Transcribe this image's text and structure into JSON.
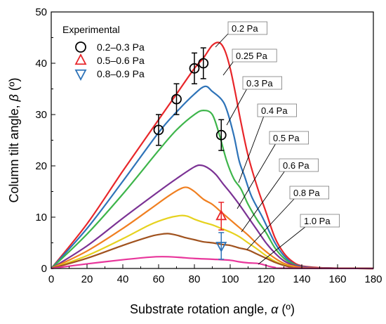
{
  "chart_data": {
    "type": "line",
    "title": "",
    "xlabel_text": "Substrate rotation angle, ",
    "xlabel_symbol": "α",
    "xlabel_unit": " (º)",
    "ylabel_text": "Column tilt angle, ",
    "ylabel_symbol": "β",
    "ylabel_unit": " (º)",
    "xlim": [
      0,
      180
    ],
    "ylim": [
      0,
      50
    ],
    "xticks": [
      0,
      20,
      40,
      60,
      80,
      100,
      120,
      140,
      160,
      180
    ],
    "yticks": [
      0,
      10,
      20,
      30,
      40,
      50
    ],
    "grid": false,
    "legend": {
      "title": "Experimental",
      "placement": "top-left",
      "entries": [
        {
          "label": "0.2–0.3 Pa",
          "marker": "circle",
          "color": "#000000"
        },
        {
          "label": "0.5–0.6 Pa",
          "marker": "triangle-up",
          "color": "#e8262a"
        },
        {
          "label": "0.8–0.9 Pa",
          "marker": "triangle-down",
          "color": "#2e73b8"
        }
      ]
    },
    "series": [
      {
        "name": "0.2 Pa",
        "color": "#e8262a",
        "points": [
          [
            0,
            0
          ],
          [
            20,
            8.7
          ],
          [
            40,
            19
          ],
          [
            60,
            29
          ],
          [
            70,
            34
          ],
          [
            80,
            39
          ],
          [
            85,
            41
          ],
          [
            90,
            43.5
          ],
          [
            94,
            44
          ],
          [
            97,
            42.5
          ],
          [
            100,
            39
          ],
          [
            103,
            34
          ],
          [
            106,
            28.5
          ],
          [
            110,
            22
          ],
          [
            115,
            16
          ],
          [
            120,
            11
          ],
          [
            125,
            6
          ],
          [
            130,
            3
          ],
          [
            135,
            1.3
          ],
          [
            140,
            0.5
          ],
          [
            150,
            0.15
          ],
          [
            160,
            0.05
          ],
          [
            180,
            0
          ]
        ]
      },
      {
        "name": "0.25 Pa",
        "color": "#2e73b8",
        "points": [
          [
            0,
            0
          ],
          [
            20,
            7.8
          ],
          [
            40,
            17
          ],
          [
            60,
            26.5
          ],
          [
            70,
            30.5
          ],
          [
            80,
            34
          ],
          [
            86,
            35.5
          ],
          [
            90,
            34.5
          ],
          [
            95,
            33
          ],
          [
            98,
            31
          ],
          [
            102,
            26
          ],
          [
            105,
            21
          ],
          [
            108,
            18
          ],
          [
            112,
            14
          ],
          [
            118,
            10
          ],
          [
            125,
            5
          ],
          [
            130,
            2.5
          ],
          [
            135,
            1
          ],
          [
            140,
            0.4
          ],
          [
            150,
            0.1
          ],
          [
            180,
            0
          ]
        ]
      },
      {
        "name": "0.3 Pa",
        "color": "#3db54a",
        "points": [
          [
            0,
            0
          ],
          [
            20,
            6.7
          ],
          [
            40,
            14.5
          ],
          [
            60,
            23
          ],
          [
            70,
            27
          ],
          [
            80,
            30
          ],
          [
            85,
            30.8
          ],
          [
            90,
            30
          ],
          [
            94,
            26
          ],
          [
            98,
            21
          ],
          [
            102,
            17.5
          ],
          [
            106,
            15.5
          ],
          [
            110,
            12.5
          ],
          [
            115,
            9.5
          ],
          [
            120,
            7
          ],
          [
            125,
            4
          ],
          [
            130,
            2
          ],
          [
            135,
            0.9
          ],
          [
            140,
            0.3
          ],
          [
            150,
            0.1
          ],
          [
            180,
            0
          ]
        ]
      },
      {
        "name": "0.4 Pa",
        "color": "#7b3294",
        "points": [
          [
            0,
            0
          ],
          [
            20,
            4.4
          ],
          [
            40,
            9.8
          ],
          [
            60,
            15
          ],
          [
            70,
            17.5
          ],
          [
            80,
            19.8
          ],
          [
            84,
            20.1
          ],
          [
            88,
            19.5
          ],
          [
            92,
            18.3
          ],
          [
            96,
            16.5
          ],
          [
            100,
            14.8
          ],
          [
            105,
            12.5
          ],
          [
            110,
            10
          ],
          [
            115,
            7.5
          ],
          [
            120,
            5
          ],
          [
            125,
            3
          ],
          [
            130,
            1.5
          ],
          [
            135,
            0.7
          ],
          [
            140,
            0.3
          ],
          [
            150,
            0.1
          ],
          [
            180,
            0
          ]
        ]
      },
      {
        "name": "0.5 Pa",
        "color": "#f07f20",
        "points": [
          [
            0,
            0
          ],
          [
            20,
            3.4
          ],
          [
            40,
            7.8
          ],
          [
            55,
            11.5
          ],
          [
            65,
            14
          ],
          [
            72,
            15.5
          ],
          [
            76,
            15.8
          ],
          [
            80,
            15
          ],
          [
            85,
            13.5
          ],
          [
            90,
            12.5
          ],
          [
            95,
            11
          ],
          [
            100,
            9.5
          ],
          [
            105,
            8
          ],
          [
            110,
            6.5
          ],
          [
            115,
            4.8
          ],
          [
            120,
            3.3
          ],
          [
            125,
            2
          ],
          [
            130,
            1
          ],
          [
            135,
            0.5
          ],
          [
            140,
            0.2
          ],
          [
            150,
            0.05
          ],
          [
            180,
            0
          ]
        ]
      },
      {
        "name": "0.6 Pa",
        "color": "#e6d21f",
        "points": [
          [
            0,
            0
          ],
          [
            20,
            2.5
          ],
          [
            40,
            5.8
          ],
          [
            55,
            8.5
          ],
          [
            65,
            9.8
          ],
          [
            72,
            10.3
          ],
          [
            76,
            10.2
          ],
          [
            80,
            9.6
          ],
          [
            85,
            9
          ],
          [
            90,
            8.5
          ],
          [
            95,
            7.8
          ],
          [
            100,
            7.1
          ],
          [
            105,
            6.2
          ],
          [
            110,
            5
          ],
          [
            115,
            3.8
          ],
          [
            120,
            2.5
          ],
          [
            125,
            1.4
          ],
          [
            130,
            0.7
          ],
          [
            135,
            0.3
          ],
          [
            140,
            0.1
          ],
          [
            180,
            0
          ]
        ]
      },
      {
        "name": "0.8 Pa",
        "color": "#a0521e",
        "points": [
          [
            0,
            0
          ],
          [
            20,
            2
          ],
          [
            40,
            4.5
          ],
          [
            55,
            6.2
          ],
          [
            60,
            6.6
          ],
          [
            65,
            6.8
          ],
          [
            70,
            6.5
          ],
          [
            75,
            6
          ],
          [
            80,
            5.6
          ],
          [
            85,
            5.2
          ],
          [
            90,
            5
          ],
          [
            95,
            4.7
          ],
          [
            100,
            4.5
          ],
          [
            105,
            4
          ],
          [
            110,
            3.6
          ],
          [
            115,
            2.8
          ],
          [
            120,
            2
          ],
          [
            125,
            1.2
          ],
          [
            130,
            0.6
          ],
          [
            135,
            0.2
          ],
          [
            140,
            0.1
          ],
          [
            180,
            0
          ]
        ]
      },
      {
        "name": "1.0 Pa",
        "color": "#e8369b",
        "points": [
          [
            0,
            0
          ],
          [
            20,
            0.9
          ],
          [
            40,
            1.7
          ],
          [
            55,
            2.2
          ],
          [
            62,
            2.3
          ],
          [
            70,
            2.2
          ],
          [
            80,
            1.95
          ],
          [
            90,
            1.8
          ],
          [
            100,
            1.6
          ],
          [
            105,
            1.3
          ],
          [
            110,
            1.1
          ],
          [
            115,
            1
          ],
          [
            118,
            0.8
          ],
          [
            122,
            0.4
          ],
          [
            125,
            0.2
          ],
          [
            130,
            0.05
          ],
          [
            180,
            0
          ]
        ]
      }
    ],
    "experimental": [
      {
        "series": "0.2–0.3 Pa",
        "marker": "circle",
        "color": "#000000",
        "points": [
          {
            "x": 60,
            "y": 27,
            "yerr": 3
          },
          {
            "x": 70,
            "y": 33,
            "yerr": 3
          },
          {
            "x": 80,
            "y": 39,
            "yerr": 3
          },
          {
            "x": 85,
            "y": 40,
            "yerr": 3
          },
          {
            "x": 95,
            "y": 26,
            "yerr": 3
          }
        ]
      },
      {
        "series": "0.5–0.6 Pa",
        "marker": "triangle-up",
        "color": "#e8262a",
        "points": [
          {
            "x": 95,
            "y": 10.2,
            "yerr": 2.7
          }
        ]
      },
      {
        "series": "0.8–0.9 Pa",
        "marker": "triangle-down",
        "color": "#2e73b8",
        "points": [
          {
            "x": 95,
            "y": 4.4,
            "yerr": 2.6
          }
        ]
      }
    ],
    "annotations": [
      {
        "text": "0.2 Pa",
        "series": "0.2 Pa"
      },
      {
        "text": "0.25 Pa",
        "series": "0.25 Pa"
      },
      {
        "text": "0.3 Pa",
        "series": "0.3 Pa"
      },
      {
        "text": "0.4 Pa",
        "series": "0.4 Pa"
      },
      {
        "text": "0.5 Pa",
        "series": "0.5 Pa"
      },
      {
        "text": "0.6 Pa",
        "series": "0.6 Pa"
      },
      {
        "text": "0.8 Pa",
        "series": "0.8 Pa"
      },
      {
        "text": "1.0 Pa",
        "series": "1.0 Pa"
      }
    ]
  }
}
